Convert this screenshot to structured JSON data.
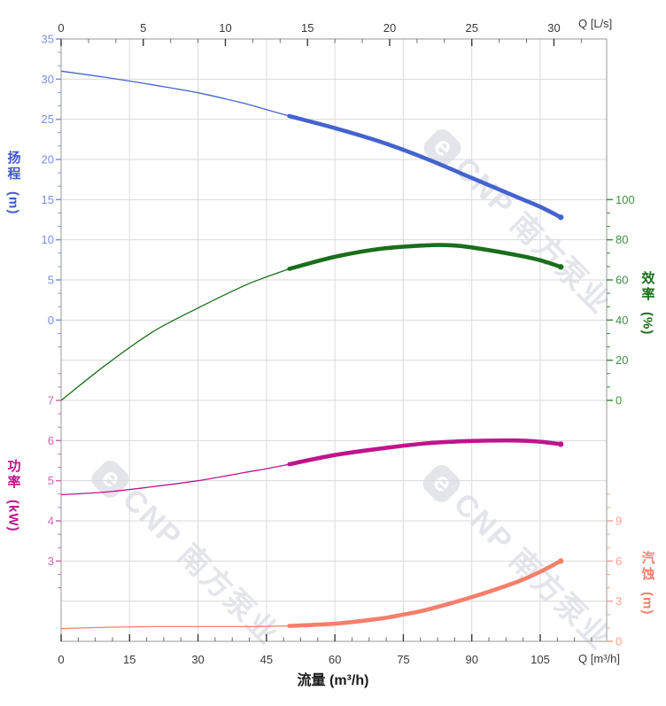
{
  "watermark": {
    "logo": "e",
    "text": "CNP 南方泵业"
  },
  "chart_data": {
    "type": "line",
    "title": "",
    "grid": "on",
    "axes": {
      "top": {
        "unit_label": "Q [L/s]",
        "ticks": [
          0,
          5,
          10,
          15,
          20,
          25,
          30
        ]
      },
      "bottom": {
        "title": "流量 (m³/h)",
        "unit_label": "Q [m³/h]",
        "ticks": [
          0,
          15,
          30,
          45,
          60,
          75,
          90,
          105
        ]
      },
      "head": {
        "title": "扬程",
        "unit_label": "(m)",
        "ticks": [
          35,
          30,
          25,
          20,
          15,
          10,
          5,
          0
        ],
        "color_label": "#7b8fe2",
        "color_curve": "#4463cf",
        "top_value": 35,
        "units_per_row": 5,
        "row_offset": 0
      },
      "efficiency": {
        "title": "效率",
        "unit_label": "(%)",
        "ticks": [
          100,
          80,
          60,
          40,
          20,
          0
        ],
        "color_label": "#3d9140",
        "color_curve": "#1b6e1b",
        "top_value": 100,
        "units_per_row": 20,
        "row_offset": 4
      },
      "power": {
        "title": "功率",
        "unit_label": "(kW)",
        "ticks": [
          7,
          6,
          5,
          4,
          3
        ],
        "color_label": "#d465b3",
        "color_curve": "#c0148c",
        "top_value": 7,
        "units_per_row": 1,
        "row_offset": 9
      },
      "npsh": {
        "title": "汽蚀",
        "unit_label": "(m)",
        "ticks": [
          9,
          6,
          3,
          0
        ],
        "color_label": "#f9a090",
        "color_curve": "#f57f6b",
        "top_value": 9,
        "units_per_row": 3,
        "row_offset": 12
      }
    },
    "series": [
      {
        "name": "扬程",
        "axis": "head",
        "thick_from": 50,
        "points": [
          [
            0,
            31.0
          ],
          [
            10,
            30.2
          ],
          [
            20,
            29.3
          ],
          [
            30,
            28.3
          ],
          [
            40,
            27.0
          ],
          [
            45,
            26.2
          ],
          [
            50,
            25.4
          ],
          [
            60,
            23.9
          ],
          [
            70,
            22.2
          ],
          [
            80,
            20.1
          ],
          [
            90,
            17.7
          ],
          [
            100,
            15.3
          ],
          [
            105,
            14.1
          ],
          [
            109.5,
            12.8
          ]
        ]
      },
      {
        "name": "效率",
        "axis": "efficiency",
        "thick_from": 50,
        "points": [
          [
            0,
            0
          ],
          [
            10,
            18
          ],
          [
            20,
            34
          ],
          [
            30,
            46
          ],
          [
            40,
            57
          ],
          [
            45,
            61.5
          ],
          [
            50,
            65.5
          ],
          [
            60,
            71.5
          ],
          [
            70,
            75.5
          ],
          [
            80,
            77.2
          ],
          [
            85,
            77.3
          ],
          [
            90,
            76.2
          ],
          [
            100,
            72.3
          ],
          [
            105,
            69.8
          ],
          [
            109.5,
            66.5
          ]
        ]
      },
      {
        "name": "功率",
        "axis": "power",
        "thick_from": 50,
        "points": [
          [
            0,
            4.65
          ],
          [
            10,
            4.72
          ],
          [
            20,
            4.85
          ],
          [
            30,
            5.0
          ],
          [
            40,
            5.2
          ],
          [
            45,
            5.3
          ],
          [
            50,
            5.41
          ],
          [
            60,
            5.64
          ],
          [
            70,
            5.8
          ],
          [
            80,
            5.93
          ],
          [
            90,
            5.99
          ],
          [
            100,
            6.0
          ],
          [
            105,
            5.97
          ],
          [
            109.5,
            5.91
          ]
        ]
      },
      {
        "name": "汽蚀",
        "axis": "npsh",
        "thick_from": 50,
        "points": [
          [
            0,
            0.95
          ],
          [
            10,
            1.05
          ],
          [
            20,
            1.1
          ],
          [
            30,
            1.1
          ],
          [
            40,
            1.1
          ],
          [
            45,
            1.12
          ],
          [
            50,
            1.15
          ],
          [
            60,
            1.32
          ],
          [
            70,
            1.7
          ],
          [
            75,
            2.0
          ],
          [
            80,
            2.35
          ],
          [
            90,
            3.3
          ],
          [
            100,
            4.45
          ],
          [
            105,
            5.2
          ],
          [
            109.5,
            6.0
          ]
        ]
      }
    ]
  }
}
